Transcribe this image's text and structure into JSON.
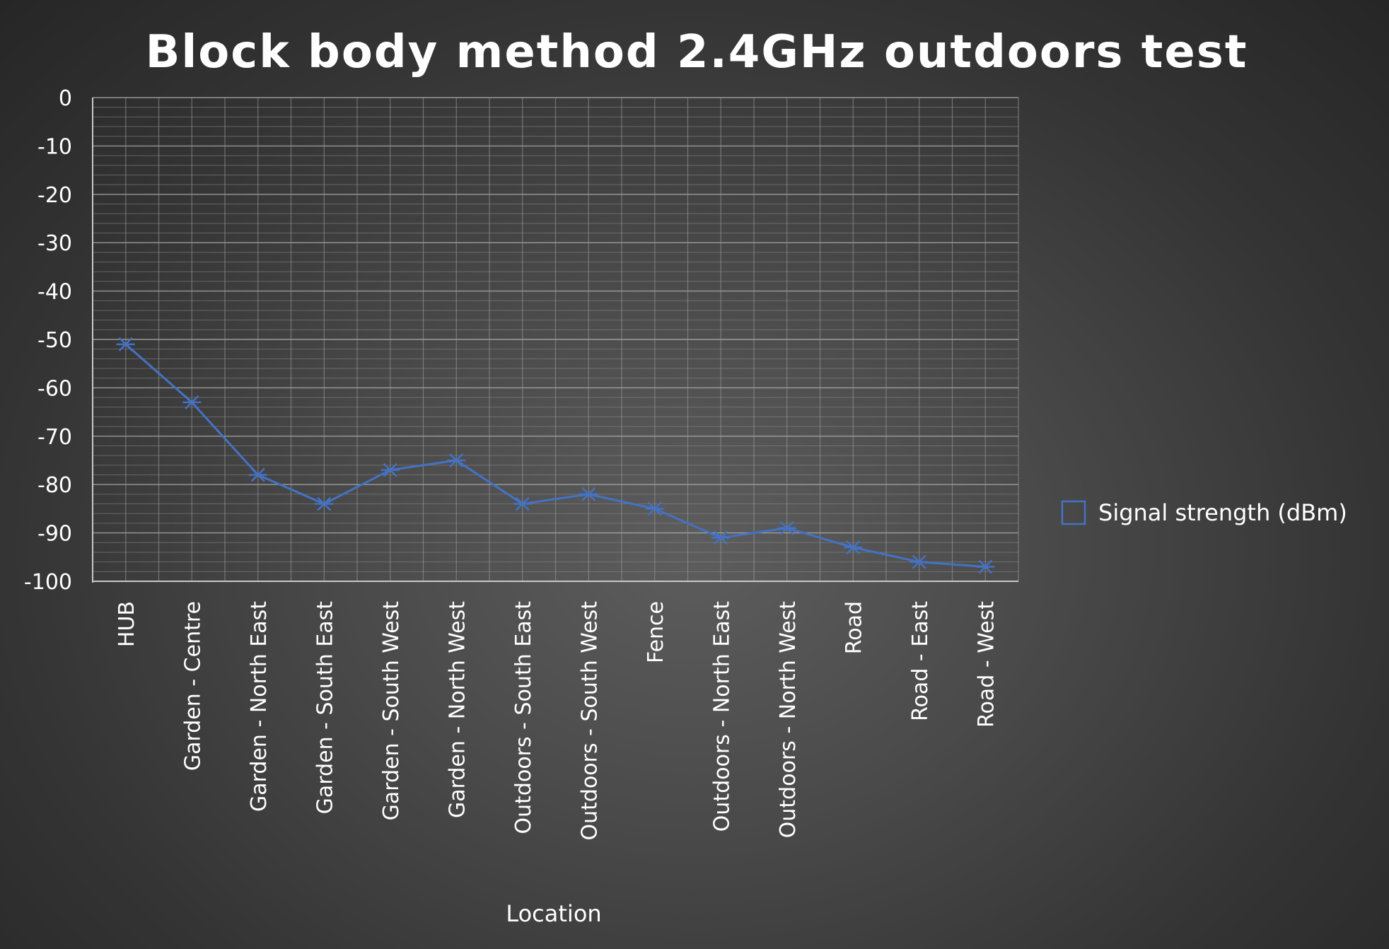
{
  "chart_data": {
    "type": "line",
    "title": "Block body method 2.4GHz outdoors test",
    "xlabel": "Location",
    "ylabel": "",
    "ylim": [
      -100,
      0
    ],
    "yticks": [
      0,
      -10,
      -20,
      -30,
      -40,
      -50,
      -60,
      -70,
      -80,
      -90,
      -100
    ],
    "grid": true,
    "legend_position": "right",
    "categories": [
      "HUB",
      "Garden - Centre",
      "Garden - North East",
      "Garden - South East",
      "Garden - South West",
      "Garden - North West",
      "Outdoors - South East",
      "Outdoors - South West",
      "Fence",
      "Outdoors - North East",
      "Outdoors - North West",
      "Road",
      "Road - East",
      "Road - West"
    ],
    "series": [
      {
        "name": "Signal strength (dBm)",
        "color": "#4472c4",
        "marker": "star",
        "values": [
          -51,
          -63,
          -78,
          -84,
          -77,
          -75,
          -84,
          -82,
          -85,
          -91,
          -89,
          -93,
          -96,
          -97
        ]
      }
    ]
  }
}
